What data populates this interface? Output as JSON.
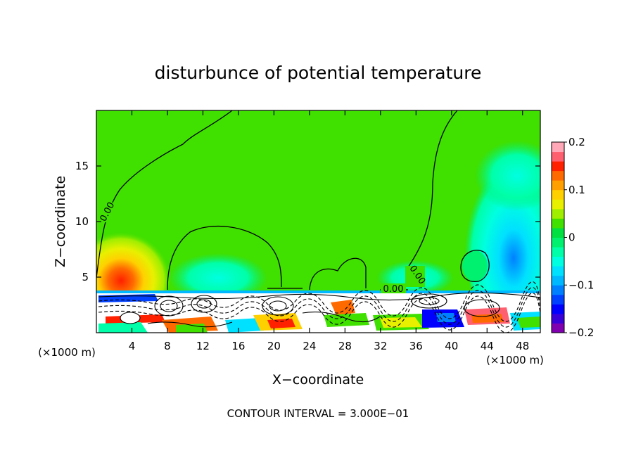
{
  "chart_data": {
    "type": "heatmap",
    "title": "disturbunce of potential temperature",
    "xlabel": "X−coordinate",
    "ylabel": "Z−coordinate",
    "x_unit_label_left": "(×1000 m)",
    "x_unit_label_right": "(×1000 m)",
    "xlim": [
      0,
      50
    ],
    "ylim": [
      0,
      20
    ],
    "x_ticks": [
      4,
      8,
      12,
      16,
      20,
      24,
      28,
      32,
      36,
      40,
      44,
      48
    ],
    "x_tick_labels": [
      "4",
      "8",
      "12",
      "16",
      "20",
      "24",
      "28",
      "32",
      "36",
      "40",
      "44",
      "48"
    ],
    "y_ticks": [
      5,
      10,
      15
    ],
    "y_tick_labels": [
      "5",
      "10",
      "15"
    ],
    "footer": "CONTOUR INTERVAL = 3.000E−01",
    "contour_labels": [
      "0.00",
      "0.00",
      "0.00"
    ],
    "colorbar": {
      "range": [
        -0.2,
        0.2
      ],
      "tick_values": [
        0.2,
        0.1,
        0,
        -0.1,
        -0.2
      ],
      "tick_labels": [
        "0.2",
        "0.1",
        "0",
        "−0.1",
        "−0.2"
      ],
      "colors": [
        "#8000b0",
        "#3a00d8",
        "#0000ff",
        "#0040ff",
        "#0080ff",
        "#00b8ff",
        "#00e0ff",
        "#00ffe0",
        "#00ffa8",
        "#00f070",
        "#00e040",
        "#40e000",
        "#a0ee00",
        "#e8f000",
        "#ffd000",
        "#ffa000",
        "#ff6a00",
        "#ff2000",
        "#ff6070",
        "#ffa8b8"
      ]
    },
    "regions": [
      {
        "name": "warm-left",
        "value": 0.15,
        "x": 3,
        "z": 5
      },
      {
        "name": "cool-right",
        "value": -0.1,
        "x": 47,
        "z": 6
      },
      {
        "name": "cool-center",
        "value": -0.05,
        "x": 18,
        "z": 6
      },
      {
        "name": "boundary-layer",
        "value": 0.0,
        "x": 25,
        "z": 2
      }
    ]
  }
}
